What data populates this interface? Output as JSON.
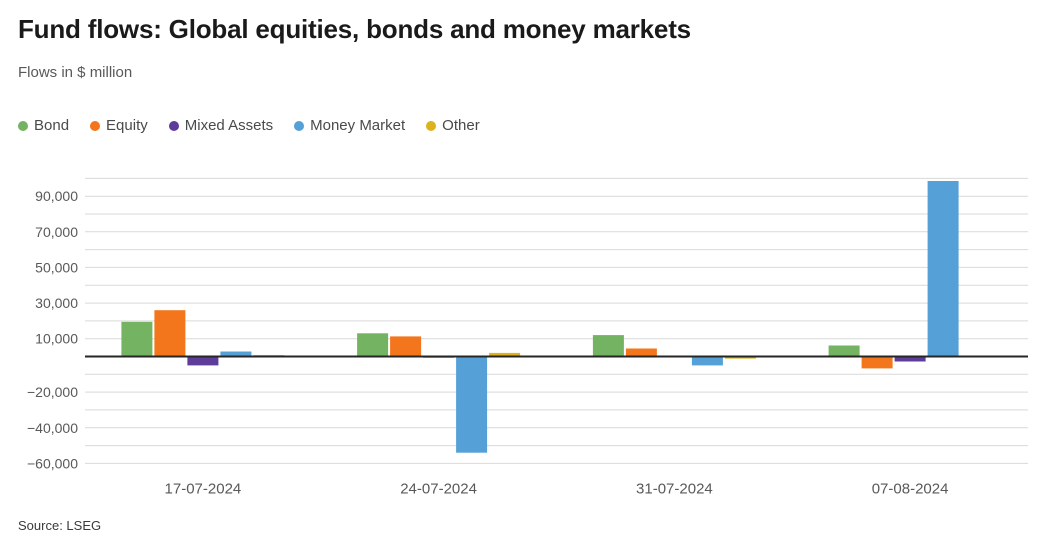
{
  "header": {
    "title": "Fund flows: Global equities, bonds and money markets",
    "subtitle": "Flows in $ million"
  },
  "source": "Source: LSEG",
  "chart_data": {
    "type": "bar",
    "title": "Fund flows: Global equities, bonds and money markets",
    "subtitle": "Flows in $ million",
    "xlabel": "",
    "ylabel": "Flows in $ million",
    "categories": [
      "17-07-2024",
      "24-07-2024",
      "31-07-2024",
      "07-08-2024"
    ],
    "series": [
      {
        "name": "Bond",
        "color": "#74b361",
        "values": [
          19500,
          13000,
          12000,
          6200
        ]
      },
      {
        "name": "Equity",
        "color": "#f3761d",
        "values": [
          26000,
          11300,
          4500,
          -6700
        ]
      },
      {
        "name": "Mixed Assets",
        "color": "#5e3c99",
        "values": [
          -5000,
          -700,
          -200,
          -2800
        ]
      },
      {
        "name": "Money Market",
        "color": "#56a0d8",
        "values": [
          2800,
          -54000,
          -5000,
          98500
        ]
      },
      {
        "name": "Other",
        "color": "#dcb31e",
        "values": [
          800,
          2000,
          -1200,
          0
        ]
      }
    ],
    "ylim": [
      -60000,
      100000
    ],
    "grid_step": 10000,
    "grid": true,
    "legend_position": "top",
    "y_ticks": [
      {
        "value": 90000,
        "label": "90,000"
      },
      {
        "value": 70000,
        "label": "70,000"
      },
      {
        "value": 50000,
        "label": "50,000"
      },
      {
        "value": 30000,
        "label": "30,000"
      },
      {
        "value": 10000,
        "label": "10,000"
      },
      {
        "value": -20000,
        "label": "−20,000"
      },
      {
        "value": -40000,
        "label": "−40,000"
      },
      {
        "value": -60000,
        "label": "−60,000"
      }
    ],
    "axis_colors": {
      "grid": "#d9d9d9",
      "zero_line": "#262626",
      "tick_text": "#595959"
    }
  }
}
